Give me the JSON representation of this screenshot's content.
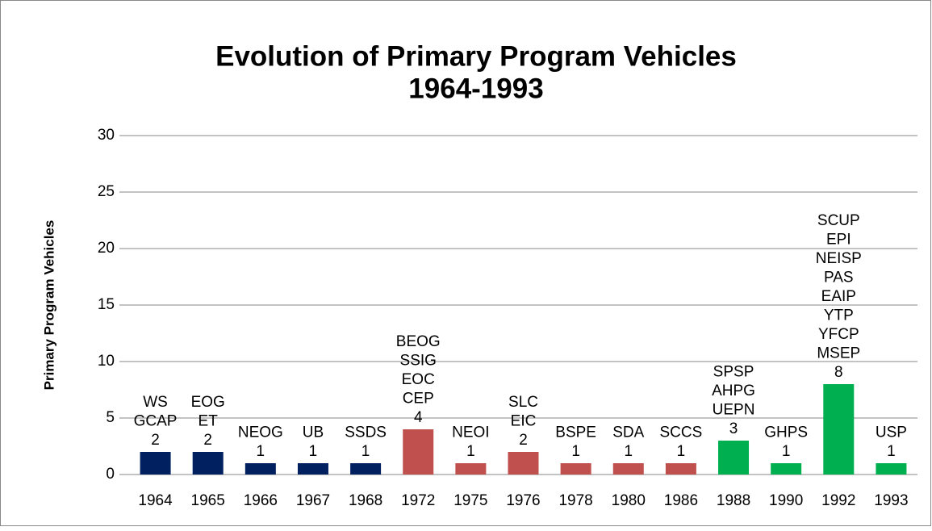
{
  "chart_data": {
    "type": "bar",
    "title": [
      "Evolution of Primary Program Vehicles",
      "1964-1993"
    ],
    "y_label": "Primary Program Vehicles",
    "categories": [
      "1964",
      "1965",
      "1966",
      "1967",
      "1968",
      "1972",
      "1975",
      "1976",
      "1978",
      "1980",
      "1986",
      "1988",
      "1990",
      "1992",
      "1993"
    ],
    "values": [
      2,
      2,
      1,
      1,
      1,
      4,
      1,
      2,
      1,
      1,
      1,
      3,
      1,
      8,
      1
    ],
    "colors": [
      "#002060",
      "#002060",
      "#002060",
      "#002060",
      "#002060",
      "#c0504d",
      "#c0504d",
      "#c0504d",
      "#c0504d",
      "#c0504d",
      "#c0504d",
      "#00b050",
      "#00b050",
      "#00b050",
      "#00b050"
    ],
    "bar_labels": [
      [
        "WS",
        "GCAP"
      ],
      [
        "EOG",
        "ET"
      ],
      [
        "NEOG"
      ],
      [
        "UB"
      ],
      [
        "SSDS"
      ],
      [
        "BEOG",
        "SSIG",
        "EOC",
        "CEP"
      ],
      [
        "NEOI"
      ],
      [
        "SLC",
        "EIC"
      ],
      [
        "BSPE"
      ],
      [
        "SDA"
      ],
      [
        "SCCS"
      ],
      [
        "SPSP",
        "AHPG",
        "UEPN"
      ],
      [
        "GHPS"
      ],
      [
        "SCUP",
        "EPI",
        "NEISP",
        "PAS",
        "EAIP",
        "YTP",
        "YFCP",
        "MSEP"
      ],
      [
        "USP"
      ]
    ],
    "ylim": [
      0,
      30
    ],
    "yticks": [
      0,
      5,
      10,
      15,
      20,
      25,
      30
    ],
    "grid": true
  }
}
